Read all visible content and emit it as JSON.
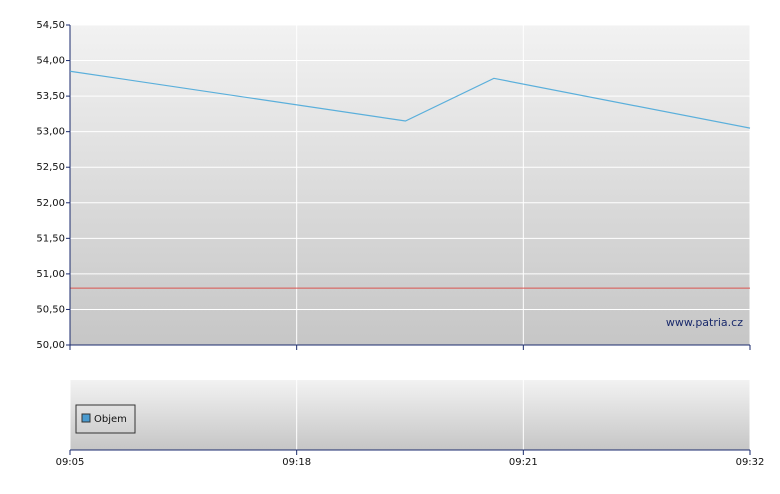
{
  "chart_data": {
    "type": "line",
    "x": [
      0,
      1.48,
      1.87,
      3
    ],
    "values": [
      53.85,
      53.15,
      53.75,
      53.05
    ],
    "color": "#5aafdb",
    "xlim": [
      0,
      3
    ],
    "xticks": [
      {
        "value": 0,
        "label": "09:05"
      },
      {
        "value": 1,
        "label": "09:18"
      },
      {
        "value": 2,
        "label": "09:21"
      },
      {
        "value": 3,
        "label": "09:32"
      }
    ],
    "ylim": [
      50,
      54.5
    ],
    "yticks": [
      {
        "value": 50,
        "label": "50,00"
      },
      {
        "value": 50.5,
        "label": "50,50"
      },
      {
        "value": 51,
        "label": "51,00"
      },
      {
        "value": 51.5,
        "label": "51,50"
      },
      {
        "value": 52,
        "label": "52,00"
      },
      {
        "value": 52.5,
        "label": "52,50"
      },
      {
        "value": 53,
        "label": "53,00"
      },
      {
        "value": 53.5,
        "label": "53,50"
      },
      {
        "value": 54,
        "label": "54,00"
      },
      {
        "value": 54.5,
        "label": "54,50"
      }
    ],
    "grid": true,
    "reference_line": {
      "value": 50.8,
      "color": "#d9534f"
    },
    "watermark": "www.patria.cz",
    "volume_panel": {
      "legend": "Objem",
      "legend_color": "#4a9bd0"
    }
  }
}
